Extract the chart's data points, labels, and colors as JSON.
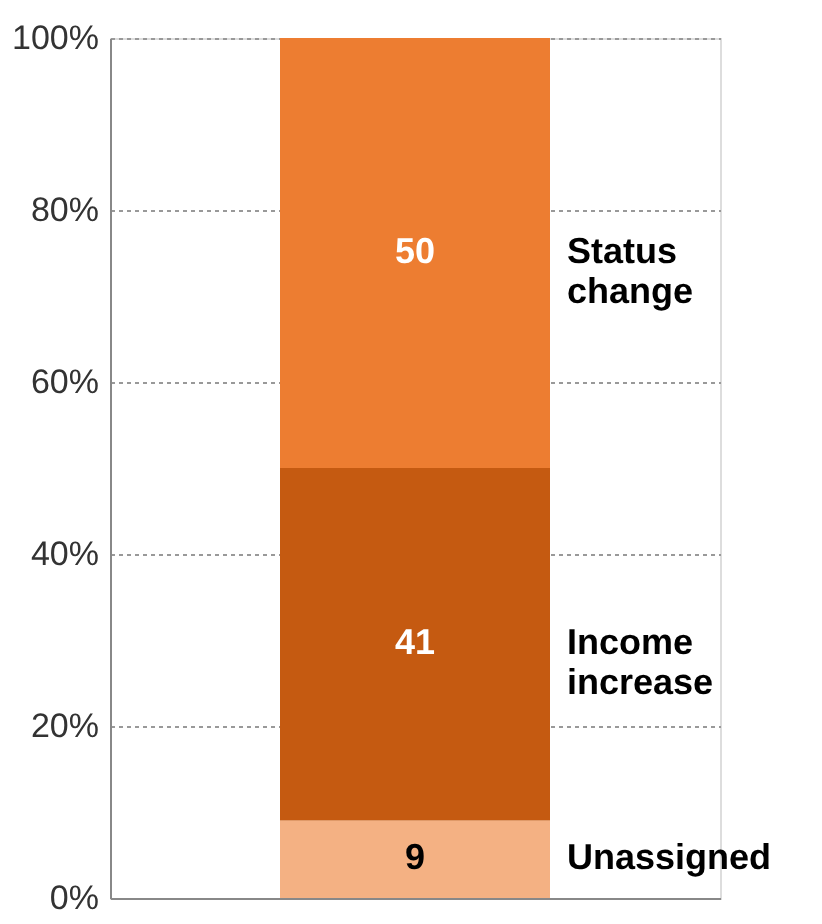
{
  "chart_data": {
    "type": "bar",
    "stacked": true,
    "categories": [
      null
    ],
    "series": [
      {
        "name": "Unassigned",
        "color": "#f4b183",
        "values": [
          9
        ]
      },
      {
        "name": "Income increase",
        "color": "#c55a11",
        "values": [
          41
        ]
      },
      {
        "name": "Status change",
        "color": "#ed7d31",
        "values": [
          50
        ]
      }
    ],
    "ylim": [
      0,
      100
    ],
    "yticks": [
      {
        "value": 0,
        "label": "0%"
      },
      {
        "value": 20,
        "label": "20%"
      },
      {
        "value": 40,
        "label": "40%"
      },
      {
        "value": 60,
        "label": "60%"
      },
      {
        "value": 80,
        "label": "80%"
      },
      {
        "value": 100,
        "label": "100%"
      }
    ],
    "grid": "y",
    "legend": false,
    "data_labels": true
  }
}
